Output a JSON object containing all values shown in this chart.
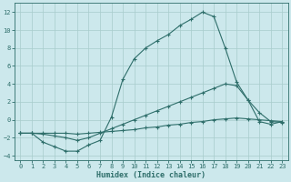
{
  "xlabel": "Humidex (Indice chaleur)",
  "background_color": "#cce8ec",
  "grid_color": "#a8cccc",
  "line_color": "#2e6e6a",
  "xlim": [
    -0.5,
    23.5
  ],
  "ylim": [
    -4.5,
    13.0
  ],
  "xticks": [
    0,
    1,
    2,
    3,
    4,
    5,
    6,
    7,
    8,
    9,
    10,
    11,
    12,
    13,
    14,
    15,
    16,
    17,
    18,
    19,
    20,
    21,
    22,
    23
  ],
  "yticks": [
    -4,
    -2,
    0,
    2,
    4,
    6,
    8,
    10,
    12
  ],
  "curve_main_x": [
    0,
    1,
    2,
    3,
    4,
    5,
    6,
    7,
    8,
    9,
    10,
    11,
    12,
    13,
    14,
    15,
    16,
    17,
    18,
    19,
    20,
    21,
    22,
    23
  ],
  "curve_main_y": [
    -1.5,
    -1.5,
    -2.5,
    -3.0,
    -3.5,
    -3.5,
    -2.8,
    -2.3,
    0.3,
    4.5,
    6.8,
    8.0,
    8.8,
    9.5,
    10.5,
    11.2,
    12.0,
    11.5,
    8.0,
    4.2,
    2.2,
    -0.2,
    -0.5,
    -0.2
  ],
  "curve_mid_x": [
    0,
    1,
    2,
    3,
    4,
    5,
    6,
    7,
    8,
    9,
    10,
    11,
    12,
    13,
    14,
    15,
    16,
    17,
    18,
    19,
    20,
    21,
    22,
    23
  ],
  "curve_mid_y": [
    -1.5,
    -1.5,
    -1.6,
    -1.8,
    -2.0,
    -2.3,
    -2.0,
    -1.5,
    -1.0,
    -0.5,
    0.0,
    0.5,
    1.0,
    1.5,
    2.0,
    2.5,
    3.0,
    3.5,
    4.0,
    3.8,
    2.2,
    0.8,
    -0.2,
    -0.3
  ],
  "curve_flat_x": [
    0,
    1,
    2,
    3,
    4,
    5,
    6,
    7,
    8,
    9,
    10,
    11,
    12,
    13,
    14,
    15,
    16,
    17,
    18,
    19,
    20,
    21,
    22,
    23
  ],
  "curve_flat_y": [
    -1.5,
    -1.5,
    -1.5,
    -1.5,
    -1.5,
    -1.6,
    -1.5,
    -1.4,
    -1.3,
    -1.2,
    -1.1,
    -0.9,
    -0.8,
    -0.6,
    -0.5,
    -0.3,
    -0.2,
    0.0,
    0.1,
    0.2,
    0.1,
    0.0,
    -0.1,
    -0.2
  ]
}
